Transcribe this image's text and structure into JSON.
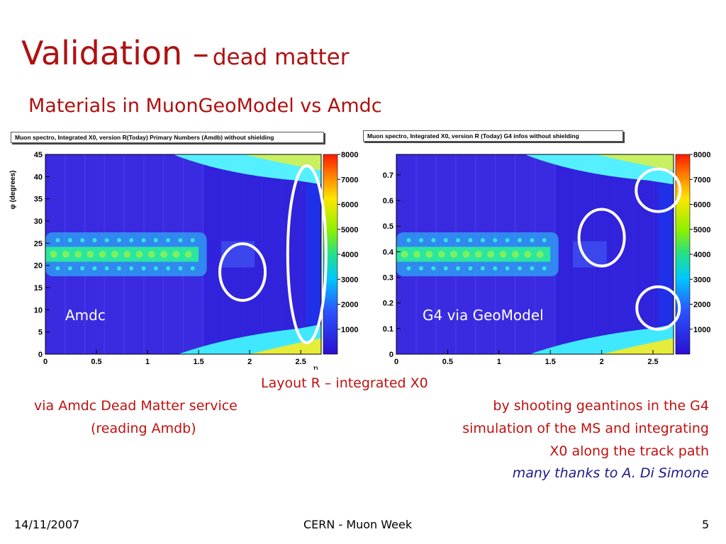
{
  "slide": {
    "title_main": "Validation –",
    "title_sub": "dead matter",
    "subtitle": "Materials in MuonGeoModel vs Amdc",
    "left_caption_1": "via Amdc Dead Matter service",
    "left_caption_2": "(reading Amdb)",
    "center_caption": "Layout R – integrated X0",
    "right_caption_1": "by shooting geantinos in the G4",
    "right_caption_2": "simulation of the MS and integrating",
    "right_caption_3": "X0 along the track path",
    "thanks": "many thanks to A. Di Simone",
    "footer_date": "14/11/2007",
    "footer_center": "CERN - Muon Week",
    "footer_page": "5"
  },
  "colors": {
    "title": "#b01010",
    "thanks": "#1a1a8a",
    "plot_bg": "#3a2ae0"
  },
  "chart_data": [
    {
      "type": "heatmap",
      "title": "Muon spectro, Integrated X0, version R(Today) Primary Numbers (Amdb) without shielding",
      "overlay_label": "Amdc",
      "xlabel": "η",
      "ylabel": "φ (degrees)",
      "xlim": [
        0,
        2.7
      ],
      "ylim": [
        0,
        45
      ],
      "x_ticks": [
        "0",
        "0.5",
        "1",
        "1.5",
        "2",
        "2.5"
      ],
      "y_ticks": [
        "0",
        "5",
        "10",
        "15",
        "20",
        "25",
        "30",
        "35",
        "40",
        "45"
      ],
      "colorbar": {
        "range": [
          0,
          8000
        ],
        "ticks": [
          "1000",
          "2000",
          "3000",
          "4000",
          "5000",
          "6000",
          "7000",
          "8000"
        ]
      }
    },
    {
      "type": "heatmap",
      "title": "Muon spectro, Integrated X0, version R (Today) G4 infos without shielding",
      "overlay_label": "G4 via GeoModel",
      "xlim": [
        0,
        2.7
      ],
      "ylim": [
        0,
        0.78
      ],
      "x_ticks": [
        "0",
        "0.5",
        "1",
        "1.5",
        "2",
        "2.5"
      ],
      "y_ticks": [
        "0",
        "0.1",
        "0.2",
        "0.3",
        "0.4",
        "0.5",
        "0.6",
        "0.7"
      ],
      "colorbar": {
        "range": [
          0,
          8000
        ],
        "ticks": [
          "1000",
          "2000",
          "3000",
          "4000",
          "5000",
          "6000",
          "7000",
          "8000"
        ]
      }
    }
  ]
}
